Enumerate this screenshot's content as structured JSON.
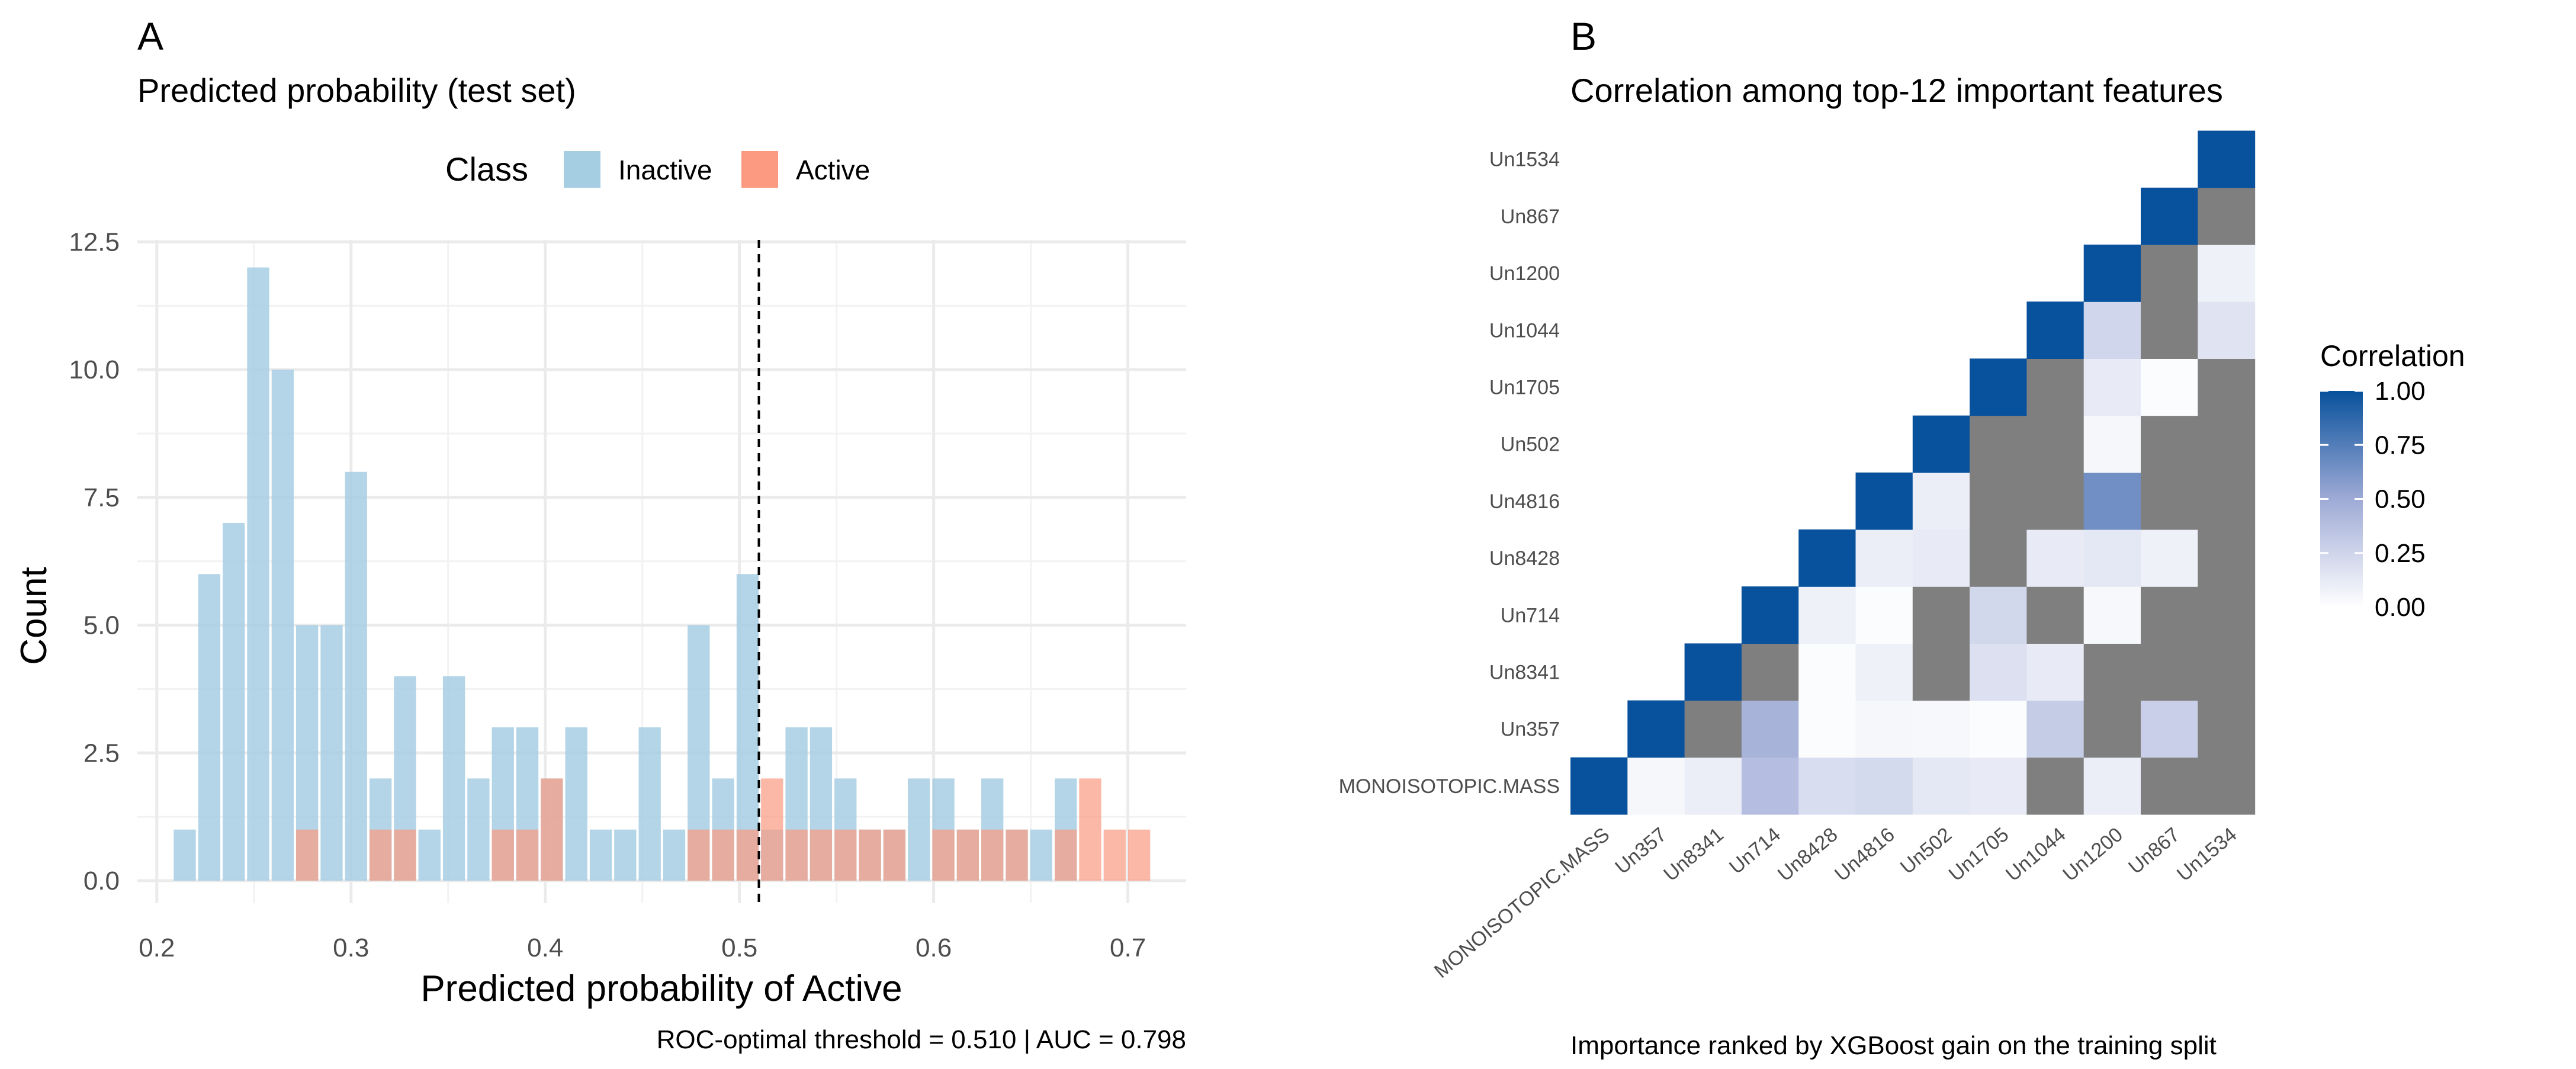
{
  "panel_a": {
    "tag": "A",
    "title": "Predicted probability (test set)",
    "caption": "ROC-optimal threshold = 0.510 | AUC = 0.798"
  },
  "panel_b": {
    "tag": "B",
    "title": "Correlation among top-12 important features",
    "caption": "Importance ranked by XGBoost gain on the training split"
  },
  "colors": {
    "inactive": "#a6cee3",
    "active": "#fb9a80",
    "heat_low": "#ffffff",
    "heat_high": "#08519c",
    "na": "#7f7f7f"
  },
  "chart_data": [
    {
      "type": "bar",
      "subtype": "histogram",
      "xlabel": "Predicted probability of Active",
      "ylabel": "Count",
      "legend": {
        "title": "Class",
        "position": "top",
        "entries": [
          "Inactive",
          "Active"
        ]
      },
      "xlim": [
        0.19,
        0.73
      ],
      "ylim": [
        0,
        12.5
      ],
      "x_ticks": [
        0.2,
        0.3,
        0.4,
        0.5,
        0.6,
        0.7
      ],
      "y_ticks": [
        0.0,
        2.5,
        5.0,
        7.5,
        10.0,
        12.5
      ],
      "y_tick_labels": [
        "0.0",
        "2.5",
        "5.0",
        "7.5",
        "10.0",
        "12.5"
      ],
      "x_tick_labels": [
        "0.2",
        "0.3",
        "0.4",
        "0.5",
        "0.6",
        "0.7"
      ],
      "bin_width": 0.0126,
      "bin_centers": [
        0.2144,
        0.227,
        0.2396,
        0.2522,
        0.2648,
        0.2774,
        0.29,
        0.3026,
        0.3152,
        0.3278,
        0.3404,
        0.353,
        0.3656,
        0.3782,
        0.3908,
        0.4034,
        0.416,
        0.4286,
        0.4412,
        0.4538,
        0.4664,
        0.479,
        0.4916,
        0.5042,
        0.5168,
        0.5294,
        0.542,
        0.5546,
        0.5672,
        0.5798,
        0.5924,
        0.605,
        0.6176,
        0.6302,
        0.6428,
        0.6554,
        0.668,
        0.6806,
        0.6932,
        0.7058
      ],
      "series": [
        {
          "name": "Inactive",
          "values": [
            1,
            6,
            7,
            12,
            10,
            5,
            5,
            8,
            2,
            4,
            1,
            4,
            2,
            3,
            3,
            2,
            3,
            1,
            1,
            3,
            1,
            5,
            2,
            6,
            1,
            3,
            3,
            2,
            1,
            1,
            2,
            2,
            1,
            2,
            1,
            1,
            2,
            0,
            0,
            0
          ]
        },
        {
          "name": "Active",
          "values": [
            0,
            0,
            0,
            0,
            0,
            1,
            0,
            0,
            1,
            1,
            0,
            0,
            0,
            1,
            1,
            2,
            0,
            0,
            0,
            0,
            0,
            1,
            1,
            1,
            2,
            1,
            1,
            1,
            1,
            1,
            0,
            1,
            1,
            1,
            1,
            0,
            1,
            2,
            1,
            1
          ]
        }
      ],
      "threshold": 0.51
    },
    {
      "type": "heatmap",
      "legend": {
        "title": "Correlation",
        "position": "right",
        "ticks": [
          0.0,
          0.25,
          0.5,
          0.75,
          1.0
        ],
        "tick_labels": [
          "0.00",
          "0.25",
          "0.50",
          "0.75",
          "1.00"
        ]
      },
      "features": [
        "MONOISOTOPIC.MASS",
        "Un357",
        "Un8341",
        "Un714",
        "Un8428",
        "Un4816",
        "Un502",
        "Un1705",
        "Un1044",
        "Un1200",
        "Un867",
        "Un1534"
      ],
      "value_range": [
        0,
        1
      ],
      "matrix": [
        [
          1.0,
          0.05,
          0.1,
          0.38,
          0.2,
          0.22,
          0.14,
          0.12,
          null,
          0.1,
          null,
          null
        ],
        [
          null,
          1.0,
          null,
          0.45,
          0.02,
          0.05,
          0.04,
          0.02,
          0.3,
          null,
          0.28,
          null
        ],
        [
          null,
          null,
          1.0,
          null,
          0.02,
          0.08,
          null,
          0.18,
          0.12,
          null,
          null,
          null
        ],
        [
          null,
          null,
          null,
          1.0,
          0.08,
          0.02,
          null,
          0.23,
          null,
          0.04,
          null,
          null
        ],
        [
          null,
          null,
          null,
          null,
          1.0,
          0.1,
          0.12,
          null,
          0.12,
          0.14,
          0.08,
          null
        ],
        [
          null,
          null,
          null,
          null,
          null,
          1.0,
          0.1,
          null,
          null,
          0.65,
          null,
          null
        ],
        [
          null,
          null,
          null,
          null,
          null,
          null,
          1.0,
          null,
          null,
          0.05,
          null,
          null
        ],
        [
          null,
          null,
          null,
          null,
          null,
          null,
          null,
          1.0,
          null,
          0.12,
          0.02,
          null
        ],
        [
          null,
          null,
          null,
          null,
          null,
          null,
          null,
          null,
          1.0,
          0.24,
          null,
          0.16
        ],
        [
          null,
          null,
          null,
          null,
          null,
          null,
          null,
          null,
          null,
          1.0,
          null,
          0.08
        ],
        [
          null,
          null,
          null,
          null,
          null,
          null,
          null,
          null,
          null,
          null,
          1.0,
          null
        ],
        [
          null,
          null,
          null,
          null,
          null,
          null,
          null,
          null,
          null,
          null,
          null,
          1.0
        ]
      ]
    }
  ]
}
